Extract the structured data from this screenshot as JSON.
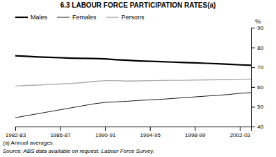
{
  "chart_data": {
    "type": "line",
    "title": "6.3   LABOUR FORCE PARTICIPATION RATES(a)",
    "categories": [
      "1982-83",
      null,
      null,
      null,
      "1986-87",
      null,
      null,
      null,
      "1990-91",
      null,
      null,
      null,
      "1994-95",
      null,
      null,
      null,
      "1998-99",
      null,
      null,
      null,
      "2002-03",
      null
    ],
    "series": [
      {
        "name": "Males",
        "color": "#000000",
        "values": [
          75.8,
          75.5,
          75.2,
          75.0,
          74.8,
          74.6,
          74.5,
          74.4,
          74.2,
          73.8,
          73.5,
          73.2,
          73.0,
          72.8,
          72.6,
          72.4,
          72.2,
          72.0,
          71.8,
          71.5,
          71.2,
          71.0
        ]
      },
      {
        "name": "Females",
        "color": "#000000",
        "values": [
          44.5,
          45.5,
          46.5,
          47.5,
          48.5,
          49.5,
          50.5,
          51.5,
          52.2,
          52.5,
          52.8,
          53.2,
          53.5,
          53.8,
          54.2,
          54.6,
          55.0,
          55.4,
          55.8,
          56.2,
          56.8,
          57.2
        ]
      },
      {
        "name": "Persons",
        "color": "#aaaaaa",
        "values": [
          60.5,
          60.8,
          61.0,
          61.3,
          61.5,
          61.8,
          62.2,
          62.8,
          63.2,
          63.2,
          63.0,
          63.1,
          63.2,
          63.3,
          63.4,
          63.4,
          63.5,
          63.6,
          63.7,
          63.8,
          63.9,
          64.0
        ]
      }
    ],
    "ylim": [
      40,
      90
    ],
    "yticks": [
      40,
      50,
      60,
      70,
      80,
      90
    ],
    "y_label": "%",
    "annotations": [
      "(a) Annual averages.",
      "Source: ABS data available on request, Labour Force Survey."
    ],
    "legend": "top-left",
    "grid": false
  }
}
